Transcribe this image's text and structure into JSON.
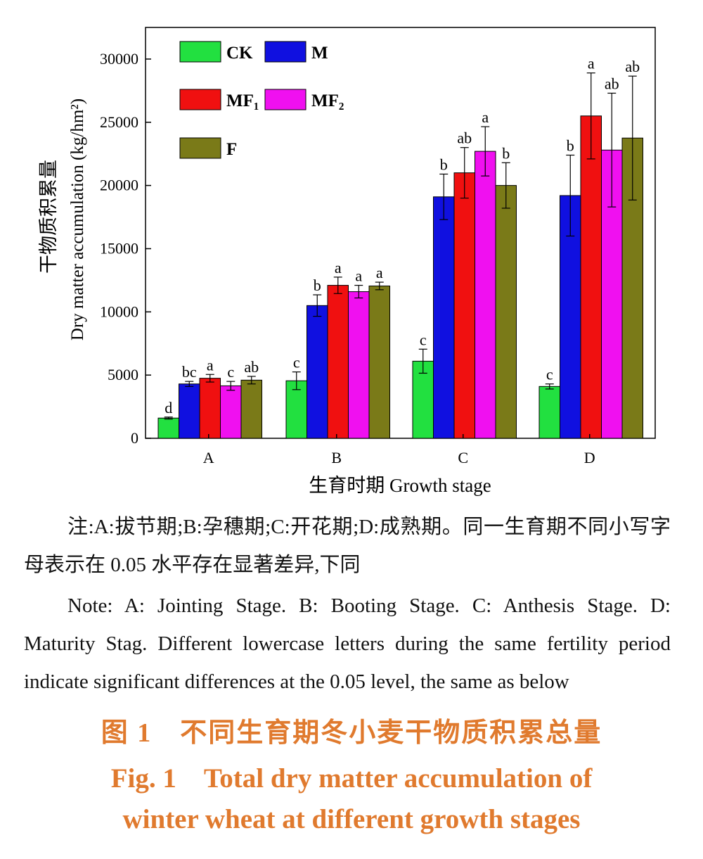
{
  "chart_data": {
    "type": "bar",
    "categories": [
      "A",
      "B",
      "C",
      "D"
    ],
    "series": [
      {
        "name": "CK",
        "color": "#22e040",
        "values": [
          1600,
          4550,
          6100,
          4100
        ],
        "errors": [
          80,
          700,
          950,
          200
        ],
        "letters": [
          "d",
          "c",
          "c",
          "c"
        ]
      },
      {
        "name": "M",
        "color": "#1010e0",
        "values": [
          4300,
          10500,
          19100,
          19200
        ],
        "errors": [
          200,
          850,
          1800,
          3200
        ],
        "letters": [
          "bc",
          "b",
          "b",
          "b"
        ]
      },
      {
        "name": "MF₁",
        "color": "#f01010",
        "values": [
          4750,
          12100,
          21000,
          25500
        ],
        "errors": [
          300,
          650,
          2000,
          3400
        ],
        "letters": [
          "a",
          "a",
          "ab",
          "a"
        ]
      },
      {
        "name": "MF₂",
        "color": "#f010f0",
        "values": [
          4150,
          11600,
          22700,
          22800
        ],
        "errors": [
          350,
          500,
          1950,
          4500
        ],
        "letters": [
          "c",
          "a",
          "a",
          "ab"
        ]
      },
      {
        "name": "F",
        "color": "#7a7a18",
        "values": [
          4600,
          12050,
          20000,
          23750
        ],
        "errors": [
          300,
          300,
          1800,
          4900
        ],
        "letters": [
          "ab",
          "a",
          "b",
          "ab"
        ]
      }
    ],
    "y_ticks": [
      0,
      5000,
      10000,
      15000,
      20000,
      25000,
      30000
    ],
    "ylim": [
      0,
      32500
    ],
    "ylabel_cn": "干物质积累量",
    "ylabel_en": "Dry matter accumulation (kg/hm²)",
    "xlabel": "生育时期 Growth stage",
    "legend_placement": "top-left",
    "grid": false
  },
  "note": {
    "cn": "注:A:拔节期;B:孕穗期;C:开花期;D:成熟期。同一生育期不同小写字母表示在 0.05 水平存在显著差异,下同",
    "en": "Note: A: Jointing Stage. B: Booting Stage. C: Anthesis Stage. D: Maturity Stag. Different lowercase letters during the same fertility period indicate significant differences at the 0.05 level, the same as below"
  },
  "caption": {
    "cn": "图 1　不同生育期冬小麦干物质积累总量",
    "en_line1": "Fig. 1　Total dry matter accumulation of",
    "en_line2": "winter wheat at different growth stages"
  },
  "colors": {
    "caption": "#e07a2e"
  }
}
